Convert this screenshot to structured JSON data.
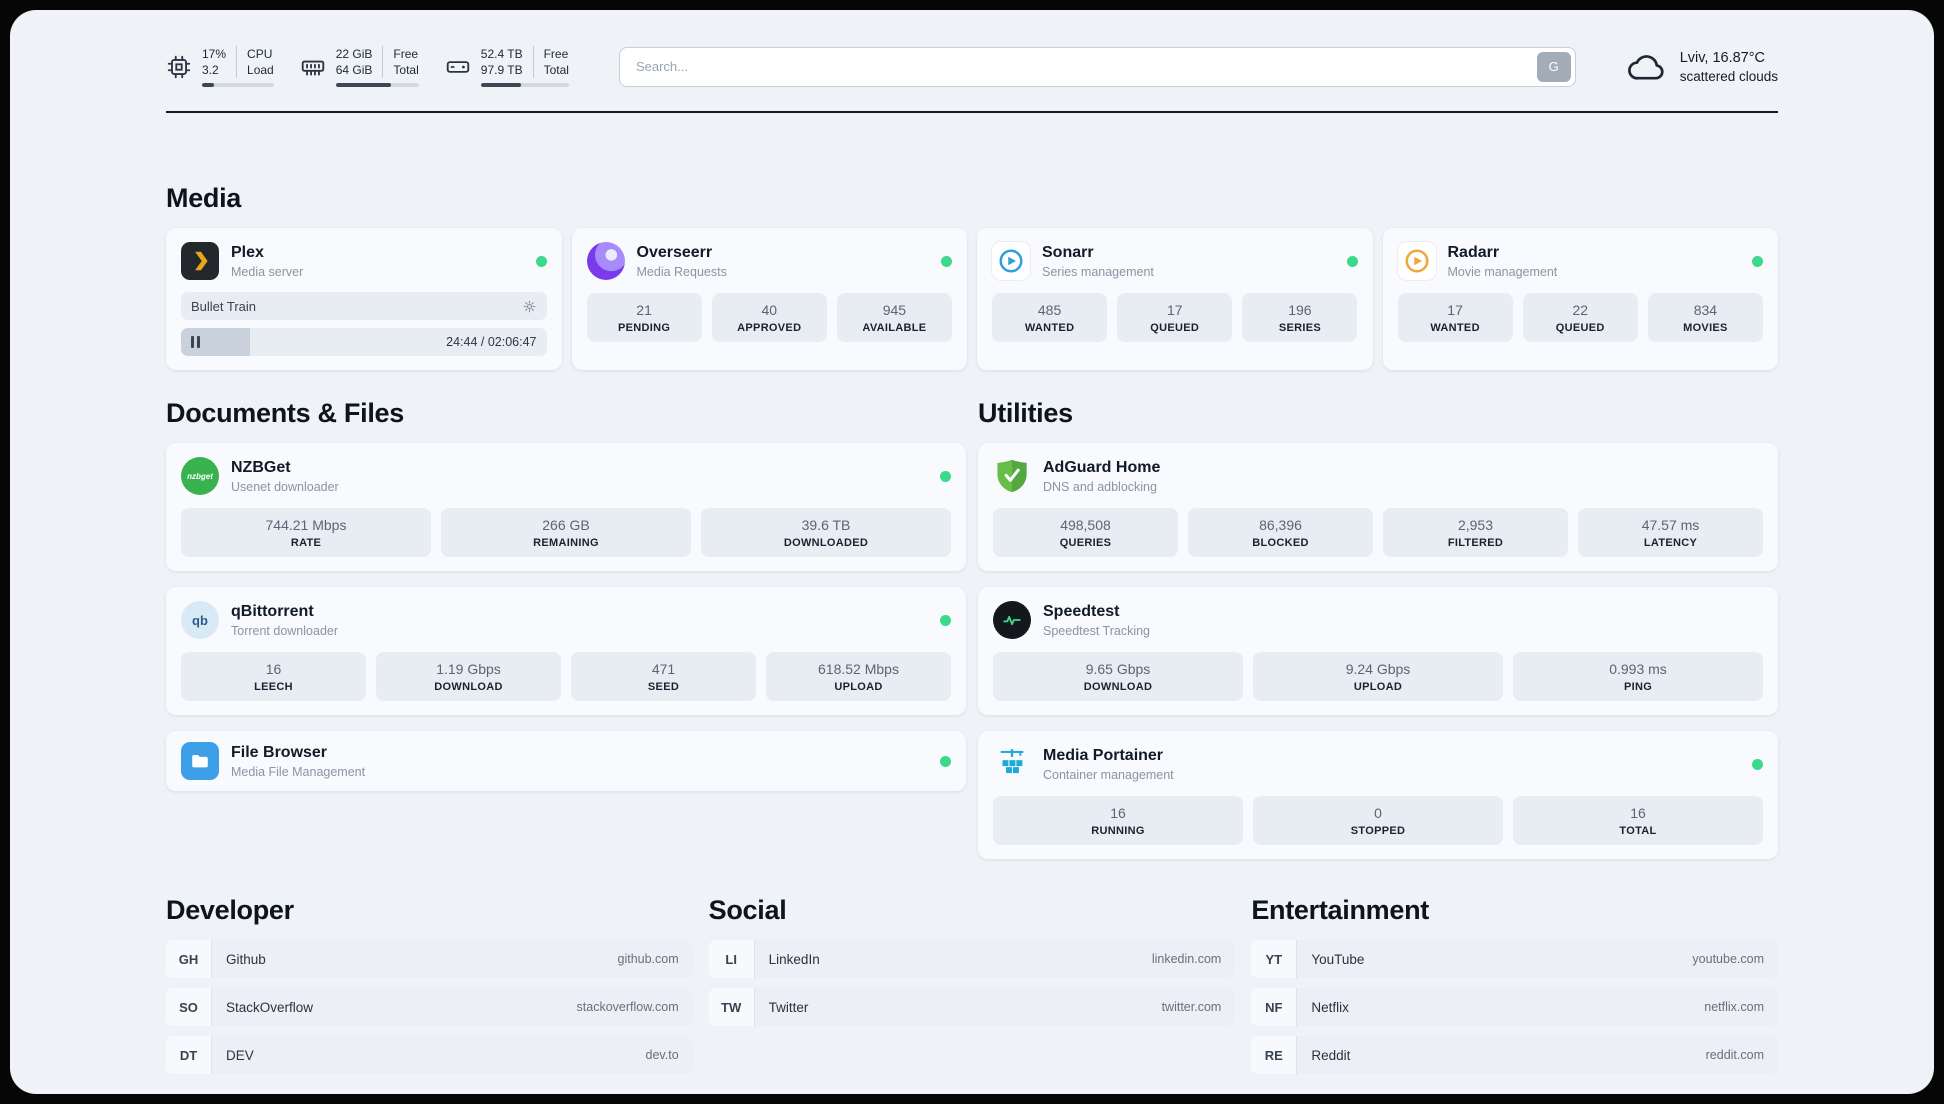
{
  "colors": {
    "status_green": "#3bd98b",
    "accent_dark": "#181c22"
  },
  "topbar": {
    "cpu": {
      "value_top": "17%",
      "value_bottom": "3.2",
      "label_top": "CPU",
      "label_bottom": "Load",
      "progress": 17
    },
    "ram": {
      "value_top": "22 GiB",
      "value_bottom": "64 GiB",
      "label_top": "Free",
      "label_bottom": "Total",
      "progress": 66
    },
    "disk": {
      "value_top": "52.4 TB",
      "value_bottom": "97.9 TB",
      "label_top": "Free",
      "label_bottom": "Total",
      "progress": 46
    },
    "search": {
      "placeholder": "Search...",
      "button_label": "G"
    },
    "weather": {
      "location": "Lviv, 16.87°C",
      "condition": "scattered clouds"
    }
  },
  "sections": {
    "media": {
      "title": "Media"
    },
    "documents": {
      "title": "Documents & Files"
    },
    "utilities": {
      "title": "Utilities"
    },
    "developer": {
      "title": "Developer"
    },
    "social": {
      "title": "Social"
    },
    "entertainment": {
      "title": "Entertainment"
    }
  },
  "apps": {
    "plex": {
      "name": "Plex",
      "desc": "Media server",
      "media_title": "Bullet Train",
      "time": "24:44 / 02:06:47",
      "progress": 19
    },
    "overseerr": {
      "name": "Overseerr",
      "desc": "Media Requests",
      "stats": [
        {
          "value": "21",
          "label": "PENDING"
        },
        {
          "value": "40",
          "label": "APPROVED"
        },
        {
          "value": "945",
          "label": "AVAILABLE"
        }
      ]
    },
    "sonarr": {
      "name": "Sonarr",
      "desc": "Series management",
      "stats": [
        {
          "value": "485",
          "label": "WANTED"
        },
        {
          "value": "17",
          "label": "QUEUED"
        },
        {
          "value": "196",
          "label": "SERIES"
        }
      ]
    },
    "radarr": {
      "name": "Radarr",
      "desc": "Movie management",
      "stats": [
        {
          "value": "17",
          "label": "WANTED"
        },
        {
          "value": "22",
          "label": "QUEUED"
        },
        {
          "value": "834",
          "label": "MOVIES"
        }
      ]
    },
    "nzbget": {
      "name": "NZBGet",
      "desc": "Usenet downloader",
      "icon_text": "nzbget",
      "stats": [
        {
          "value": "744.21 Mbps",
          "label": "RATE"
        },
        {
          "value": "266 GB",
          "label": "REMAINING"
        },
        {
          "value": "39.6 TB",
          "label": "DOWNLOADED"
        }
      ]
    },
    "qbittorrent": {
      "name": "qBittorrent",
      "desc": "Torrent downloader",
      "icon_text": "qb",
      "stats": [
        {
          "value": "16",
          "label": "LEECH"
        },
        {
          "value": "1.19 Gbps",
          "label": "DOWNLOAD"
        },
        {
          "value": "471",
          "label": "SEED"
        },
        {
          "value": "618.52 Mbps",
          "label": "UPLOAD"
        }
      ]
    },
    "filebrowser": {
      "name": "File Browser",
      "desc": "Media File Management"
    },
    "adguard": {
      "name": "AdGuard Home",
      "desc": "DNS and adblocking",
      "stats": [
        {
          "value": "498,508",
          "label": "QUERIES"
        },
        {
          "value": "86,396",
          "label": "BLOCKED"
        },
        {
          "value": "2,953",
          "label": "FILTERED"
        },
        {
          "value": "47.57 ms",
          "label": "LATENCY"
        }
      ]
    },
    "speedtest": {
      "name": "Speedtest",
      "desc": "Speedtest Tracking",
      "stats": [
        {
          "value": "9.65 Gbps",
          "label": "DOWNLOAD"
        },
        {
          "value": "9.24 Gbps",
          "label": "UPLOAD"
        },
        {
          "value": "0.993 ms",
          "label": "PING"
        }
      ]
    },
    "portainer": {
      "name": "Media Portainer",
      "desc": "Container management",
      "stats": [
        {
          "value": "16",
          "label": "RUNNING"
        },
        {
          "value": "0",
          "label": "STOPPED"
        },
        {
          "value": "16",
          "label": "TOTAL"
        }
      ]
    }
  },
  "links": {
    "developer": [
      {
        "abbr": "GH",
        "name": "Github",
        "url": "github.com"
      },
      {
        "abbr": "SO",
        "name": "StackOverflow",
        "url": "stackoverflow.com"
      },
      {
        "abbr": "DT",
        "name": "DEV",
        "url": "dev.to"
      }
    ],
    "social": [
      {
        "abbr": "LI",
        "name": "LinkedIn",
        "url": "linkedin.com"
      },
      {
        "abbr": "TW",
        "name": "Twitter",
        "url": "twitter.com"
      }
    ],
    "entertainment": [
      {
        "abbr": "YT",
        "name": "YouTube",
        "url": "youtube.com"
      },
      {
        "abbr": "NF",
        "name": "Netflix",
        "url": "netflix.com"
      },
      {
        "abbr": "RE",
        "name": "Reddit",
        "url": "reddit.com"
      }
    ]
  }
}
